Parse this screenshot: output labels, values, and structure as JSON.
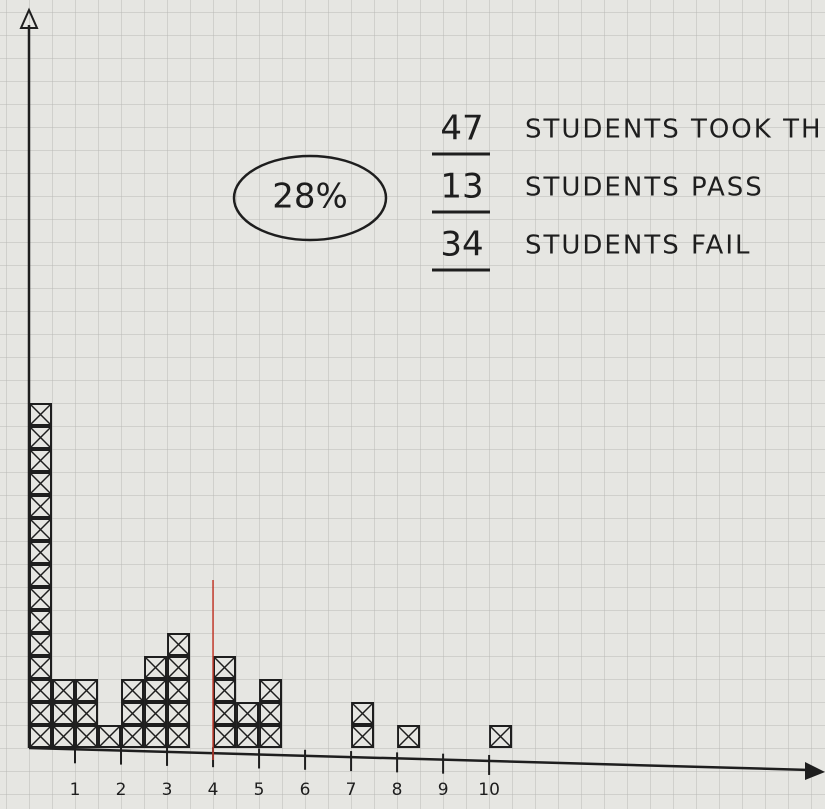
{
  "chart_data": {
    "type": "histogram",
    "x": [
      0,
      0.5,
      1,
      1.5,
      2,
      2.5,
      3,
      3.5,
      4,
      4.5,
      5,
      5.5,
      6,
      6.5,
      7,
      7.5,
      8,
      8.5,
      9,
      9.5,
      10
    ],
    "values": [
      15,
      3,
      3,
      1,
      3,
      4,
      5,
      0,
      4,
      2,
      3,
      0,
      0,
      0,
      2,
      0,
      1,
      0,
      0,
      0,
      1
    ],
    "xlim": [
      0,
      17.3
    ],
    "ylim": [
      0,
      32
    ],
    "xticks": [
      1,
      2,
      3,
      4,
      5,
      6,
      7,
      8,
      9,
      10
    ],
    "threshold": 4,
    "threshold_color": "#c0392b",
    "color": "#222222",
    "highlight": "28%",
    "summary": [
      {
        "count": "47",
        "text": "STUDENTS TOOK TH"
      },
      {
        "count": "13",
        "text": "STUDENTS PASS"
      },
      {
        "count": "34",
        "text": "STUDENTS FAIL"
      }
    ]
  }
}
